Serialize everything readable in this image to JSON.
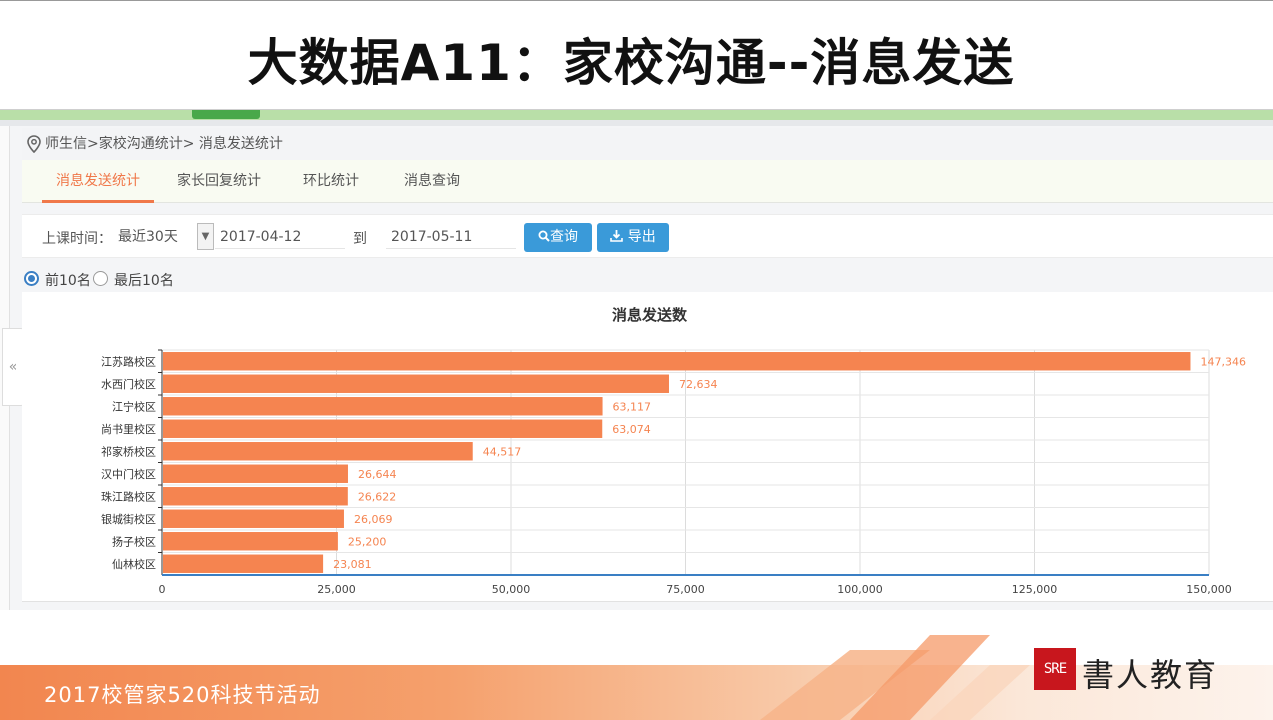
{
  "slide": {
    "title": "大数据A11：家校沟通--消息发送"
  },
  "breadcrumb": {
    "path": "师生信>家校沟通统计> 消息发送统计"
  },
  "tabs": [
    {
      "label": "消息发送统计",
      "active": true
    },
    {
      "label": "家长回复统计",
      "active": false
    },
    {
      "label": "环比统计",
      "active": false
    },
    {
      "label": "消息查询",
      "active": false
    }
  ],
  "filter": {
    "time_label": "上课时间：",
    "range_value": "最近30天",
    "start_date": "2017-04-12",
    "to_label": "到",
    "end_date": "2017-05-11",
    "query_label": "查询",
    "export_label": "导出"
  },
  "ranking": {
    "top_label": "前10名",
    "bottom_label": "最后10名",
    "selected": "top"
  },
  "chart_data": {
    "type": "bar",
    "orientation": "horizontal",
    "title": "消息发送数",
    "categories": [
      "江苏路校区",
      "水西门校区",
      "江宁校区",
      "尚书里校区",
      "祁家桥校区",
      "汉中门校区",
      "珠江路校区",
      "银城街校区",
      "扬子校区",
      "仙林校区"
    ],
    "values": [
      147346,
      72634,
      63117,
      63074,
      44517,
      26644,
      26622,
      26069,
      25200,
      23081
    ],
    "value_labels": [
      "147,346",
      "72,634",
      "63,117",
      "63,074",
      "44,517",
      "26,644",
      "26,622",
      "26,069",
      "25,200",
      "23,081"
    ],
    "x_ticks": [
      0,
      25000,
      50000,
      75000,
      100000,
      125000,
      150000
    ],
    "x_tick_labels": [
      "0",
      "25,000",
      "50,000",
      "75,000",
      "100,000",
      "125,000",
      "150,000"
    ],
    "xlim": [
      0,
      150000
    ],
    "xlabel": "",
    "ylabel": "",
    "grid": true,
    "legend": "none",
    "bar_color": "#f58450"
  },
  "footer": {
    "event_text": "2017校管家520科技节活动",
    "logo_mark": "SRE",
    "logo_name": "書人教育"
  },
  "colors": {
    "accent_orange": "#f0784a",
    "button_blue": "#3a9ad9",
    "logo_red": "#c8161d"
  },
  "icons": {
    "location": "location-pin-icon",
    "search": "search-icon",
    "export": "download-icon",
    "collapse": "double-chevron-left-icon",
    "select_caret": "chevron-down-icon"
  }
}
